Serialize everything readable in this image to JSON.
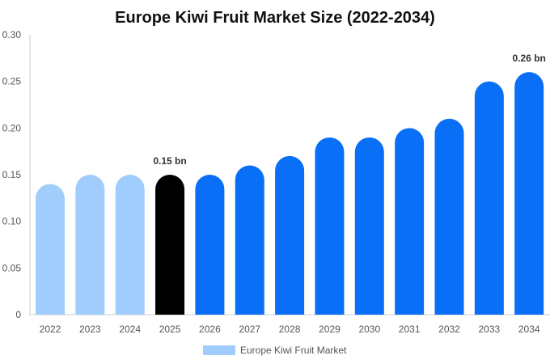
{
  "chart_data": {
    "type": "bar",
    "title": "Europe Kiwi Fruit Market Size (2022-2034)",
    "xlabel": "",
    "ylabel": "",
    "categories": [
      "2022",
      "2023",
      "2024",
      "2025",
      "2026",
      "2027",
      "2028",
      "2029",
      "2030",
      "2031",
      "2032",
      "2033",
      "2034"
    ],
    "series": [
      {
        "name": "Europe Kiwi Fruit Market",
        "values": [
          0.14,
          0.15,
          0.15,
          0.15,
          0.15,
          0.16,
          0.17,
          0.19,
          0.19,
          0.2,
          0.21,
          0.25,
          0.26
        ]
      }
    ],
    "ylim": [
      0,
      0.3
    ],
    "yticks": [
      "0",
      "0.05",
      "0.10",
      "0.15",
      "0.20",
      "0.25",
      "0.30"
    ],
    "annotations": [
      {
        "category": "2025",
        "text": "0.15 bn"
      },
      {
        "category": "2034",
        "text": "0.26 bn"
      }
    ],
    "bar_colors": {
      "historical": "#a0cdfc",
      "base_year": "#000000",
      "forecast": "#0a6ff7"
    },
    "color_by_category": [
      "historical",
      "historical",
      "historical",
      "base_year",
      "forecast",
      "forecast",
      "forecast",
      "forecast",
      "forecast",
      "forecast",
      "forecast",
      "forecast",
      "forecast"
    ],
    "legend_placement": "bottom",
    "grid": false
  }
}
